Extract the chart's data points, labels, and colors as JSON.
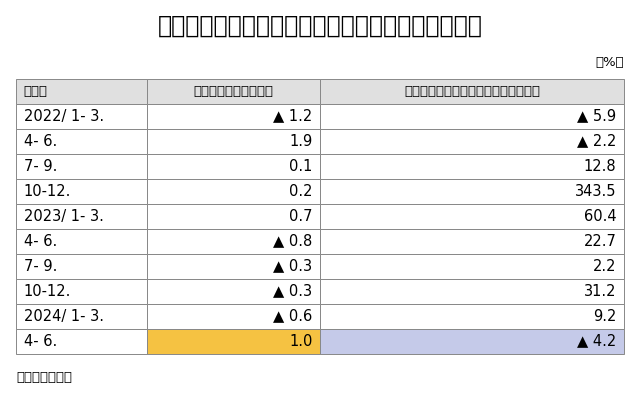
{
  "title": "実質個人消費と実質インバウンド消費の前期比推移",
  "unit_label": "（%）",
  "source_label": "（出所）内閣府",
  "col_headers": [
    "年・期",
    "実質民間最終消費支出",
    "実質非居住者家計の国内での直接購入"
  ],
  "rows": [
    {
      "period": "2022/ 1- 3.",
      "col1_neg": true,
      "col1_val": "1.2",
      "col2_neg": true,
      "col2_val": "5.9"
    },
    {
      "period": "4- 6.",
      "col1_neg": false,
      "col1_val": "1.9",
      "col2_neg": true,
      "col2_val": "2.2"
    },
    {
      "period": "7- 9.",
      "col1_neg": false,
      "col1_val": "0.1",
      "col2_neg": false,
      "col2_val": "12.8"
    },
    {
      "period": "10-12.",
      "col1_neg": false,
      "col1_val": "0.2",
      "col2_neg": false,
      "col2_val": "343.5"
    },
    {
      "period": "2023/ 1- 3.",
      "col1_neg": false,
      "col1_val": "0.7",
      "col2_neg": false,
      "col2_val": "60.4"
    },
    {
      "period": "4- 6.",
      "col1_neg": true,
      "col1_val": "0.8",
      "col2_neg": false,
      "col2_val": "22.7"
    },
    {
      "period": "7- 9.",
      "col1_neg": true,
      "col1_val": "0.3",
      "col2_neg": false,
      "col2_val": "2.2"
    },
    {
      "period": "10-12.",
      "col1_neg": true,
      "col1_val": "0.3",
      "col2_neg": false,
      "col2_val": "31.2"
    },
    {
      "period": "2024/ 1- 3.",
      "col1_neg": true,
      "col1_val": "0.6",
      "col2_neg": false,
      "col2_val": "9.2"
    },
    {
      "period": "4- 6.",
      "col1_neg": false,
      "col1_val": "1.0",
      "col2_neg": true,
      "col2_val": "4.2",
      "col1_bg": "#F5C242",
      "col2_bg": "#C5CAE9"
    }
  ],
  "header_bg": "#E0E0E0",
  "border_color": "#888888",
  "title_fontsize": 17,
  "header_fontsize": 9.5,
  "cell_fontsize": 10.5,
  "source_fontsize": 9.5,
  "col_ratios": [
    0.215,
    0.285,
    0.5
  ]
}
